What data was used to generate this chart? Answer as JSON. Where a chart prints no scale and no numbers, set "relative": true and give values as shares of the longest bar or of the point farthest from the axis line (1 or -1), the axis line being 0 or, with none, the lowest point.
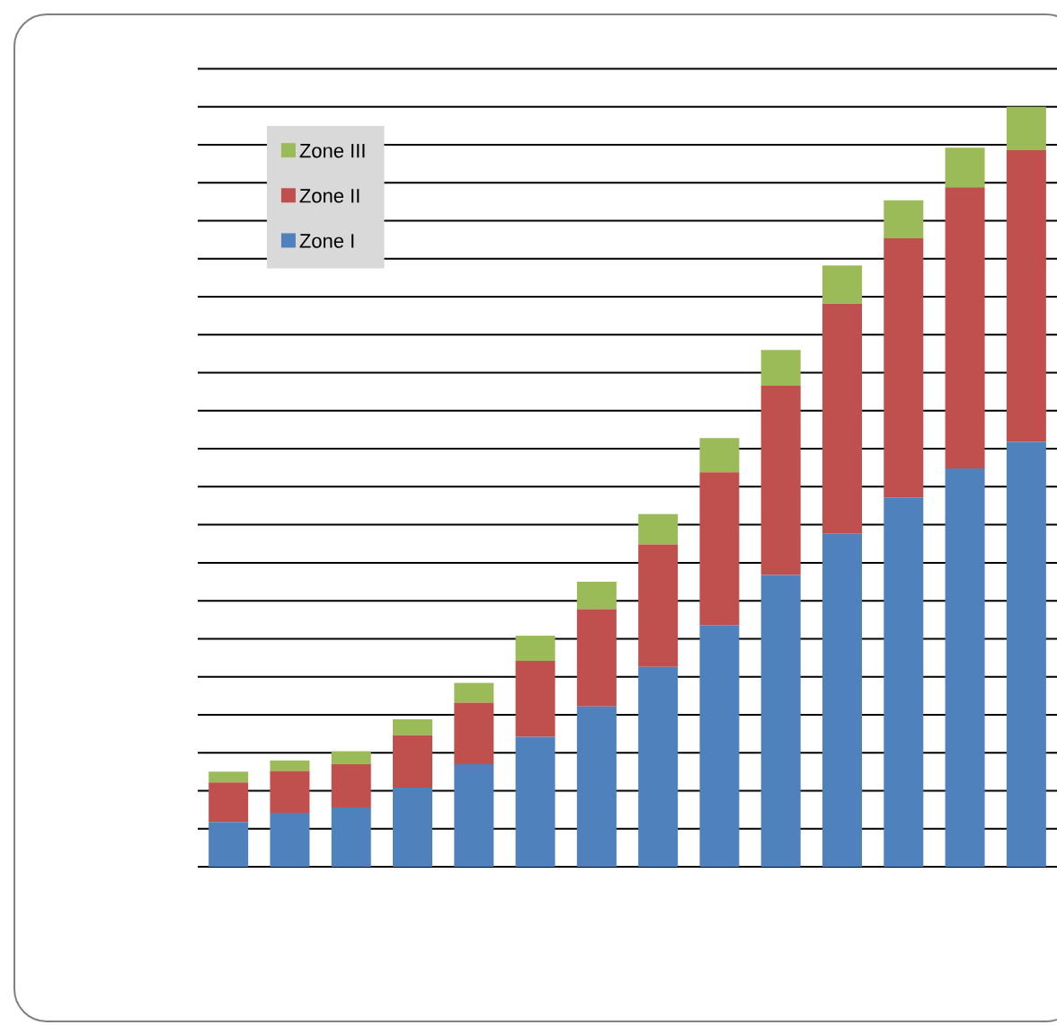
{
  "chart_data": {
    "type": "bar",
    "stacked": true,
    "relative": true,
    "grid": "y",
    "legend": "top left",
    "categories": [
      null,
      null,
      null,
      null,
      null,
      null,
      null,
      null,
      null,
      null,
      null,
      null,
      null,
      null
    ],
    "series": [
      {
        "name": "Zone I",
        "color": "#4f81bd",
        "values": [
          0.059,
          0.071,
          0.078,
          0.104,
          0.135,
          0.171,
          0.211,
          0.263,
          0.318,
          0.384,
          0.438,
          0.486,
          0.524,
          0.559
        ]
      },
      {
        "name": "Zone II",
        "color": "#c0504d",
        "values": [
          0.052,
          0.055,
          0.057,
          0.069,
          0.081,
          0.1,
          0.128,
          0.161,
          0.201,
          0.249,
          0.303,
          0.341,
          0.37,
          0.384
        ]
      },
      {
        "name": "Zone III",
        "color": "#9bbb59",
        "values": [
          0.014,
          0.014,
          0.017,
          0.021,
          0.026,
          0.033,
          0.036,
          0.04,
          0.045,
          0.047,
          0.05,
          0.05,
          0.052,
          0.057
        ]
      }
    ]
  }
}
